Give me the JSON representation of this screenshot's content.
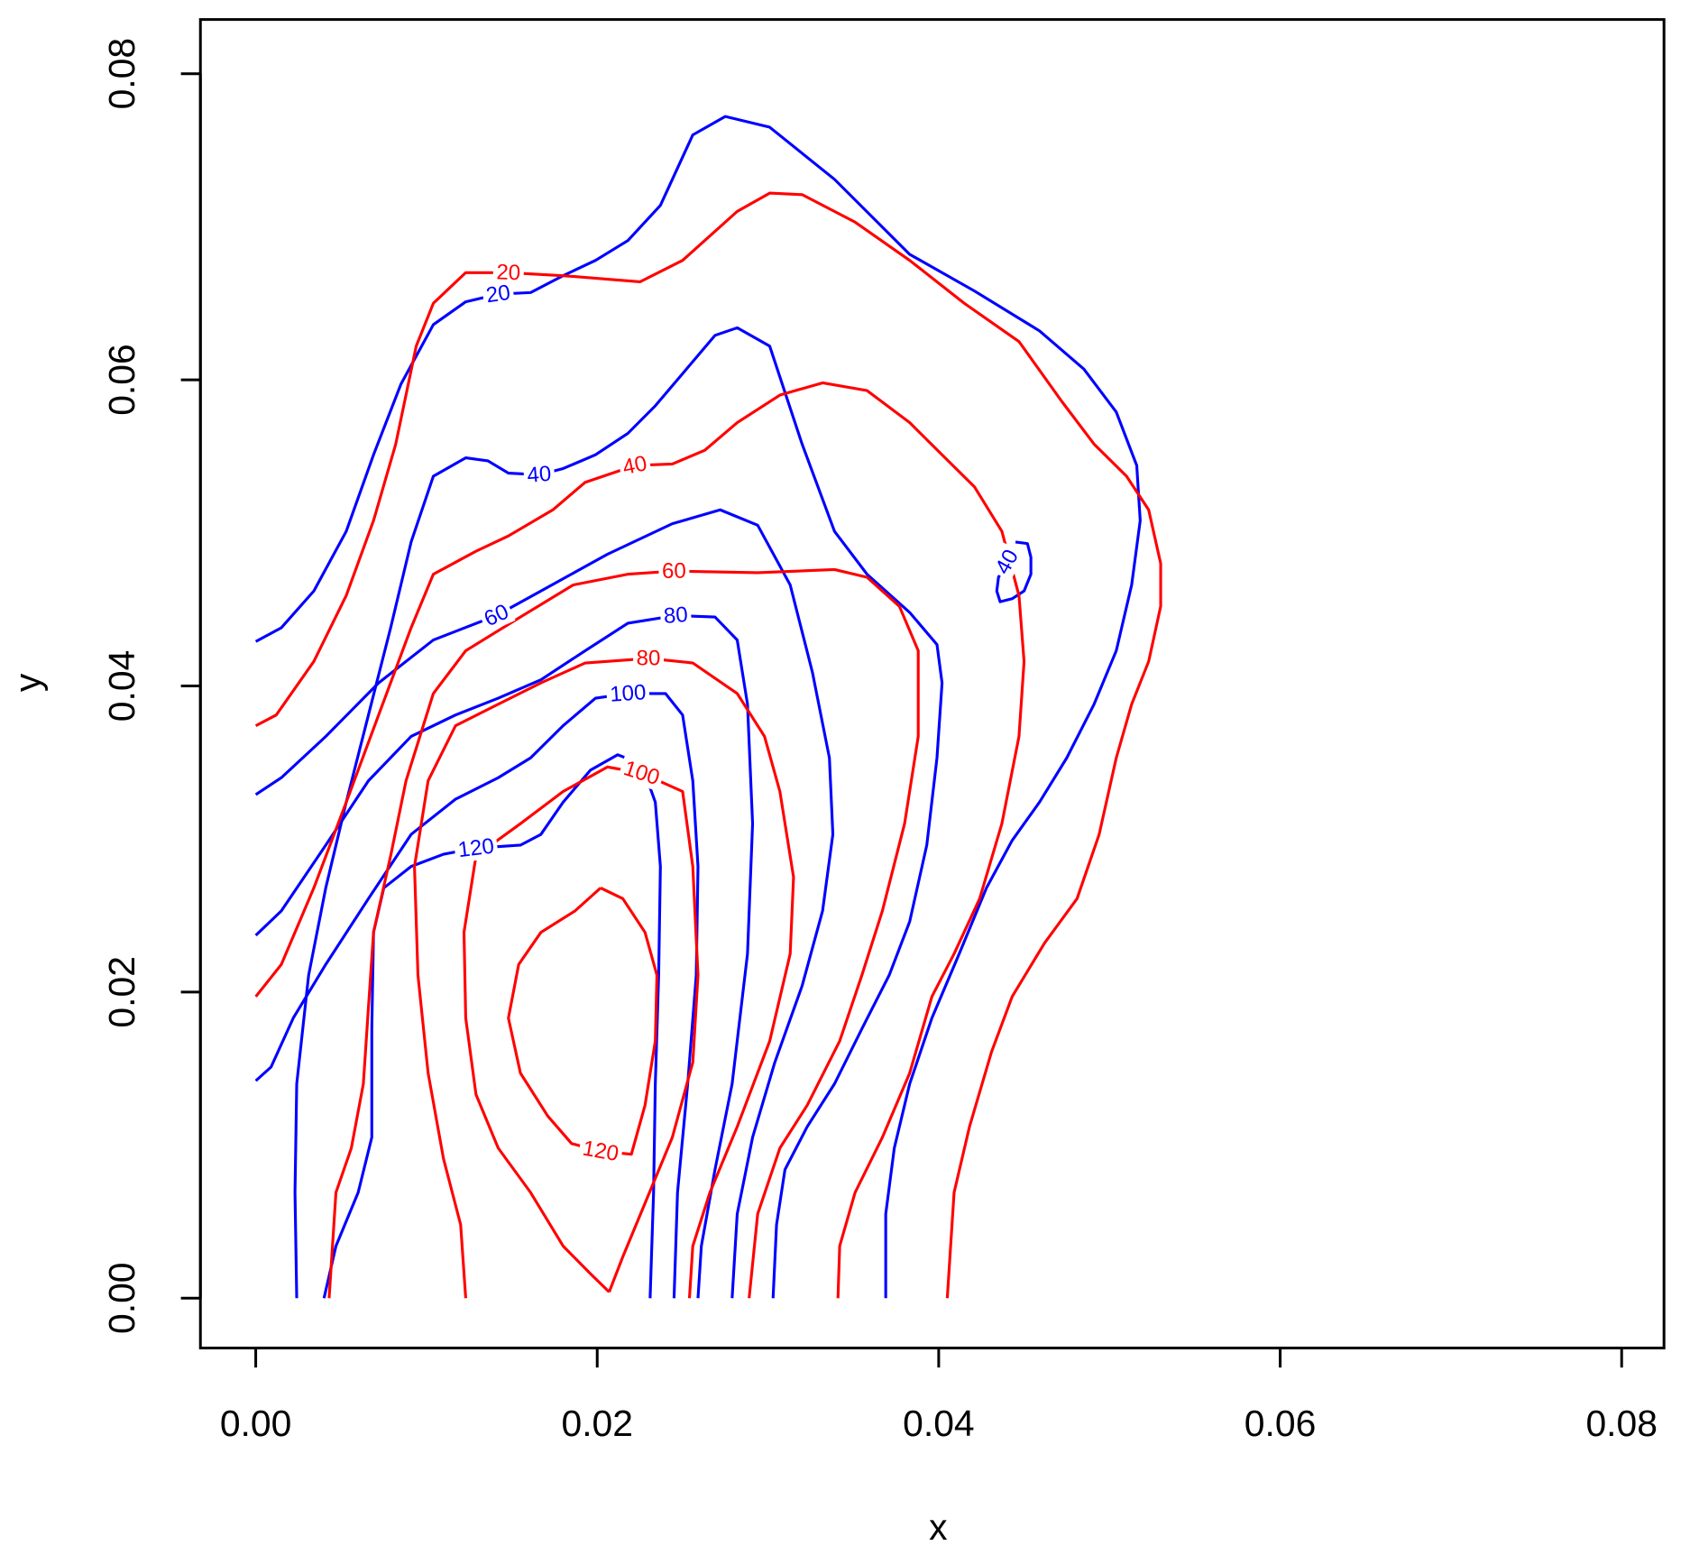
{
  "chart_data": {
    "type": "contour",
    "xlabel": "x",
    "ylabel": "y",
    "xlim": [
      -0.00324,
      0.08248
    ],
    "ylim": [
      -0.00326,
      0.08354
    ],
    "xticks": [
      {
        "value": 0,
        "label": "0.00"
      },
      {
        "value": 0.02,
        "label": "0.02"
      },
      {
        "value": 0.04,
        "label": "0.04"
      },
      {
        "value": 0.06,
        "label": "0.06"
      },
      {
        "value": 0.08,
        "label": "0.08"
      }
    ],
    "yticks": [
      {
        "value": 0,
        "label": "0.00"
      },
      {
        "value": 0.02,
        "label": "0.02"
      },
      {
        "value": 0.04,
        "label": "0.04"
      },
      {
        "value": 0.06,
        "label": "0.06"
      },
      {
        "value": 0.08,
        "label": "0.08"
      }
    ],
    "series": [
      {
        "color": "#0000ff",
        "contours": [
          {
            "level": 20,
            "x": [
              0,
              0.0015,
              0.0034,
              0.0053,
              0.0069,
              0.0085,
              0.0104,
              0.0123,
              0.0142,
              0.0161,
              0.018,
              0.0199,
              0.0218,
              0.0237,
              0.0256,
              0.0275,
              0.0301,
              0.0339,
              0.0383,
              0.0421,
              0.0459,
              0.0485,
              0.0504,
              0.0516,
              0.0518,
              0.0513,
              0.0504,
              0.0491,
              0.0475,
              0.0459,
              0.0443,
              0.0428,
              0.0412,
              0.0396,
              0.0383,
              0.0374,
              0.0369,
              0.0369
            ],
            "y": [
              0.0429,
              0.0438,
              0.0462,
              0.0501,
              0.0551,
              0.0597,
              0.0636,
              0.0651,
              0.0656,
              0.0657,
              0.0668,
              0.0678,
              0.0691,
              0.0714,
              0.076,
              0.0772,
              0.0765,
              0.0731,
              0.0682,
              0.0658,
              0.0632,
              0.0607,
              0.0579,
              0.0544,
              0.0508,
              0.0466,
              0.0423,
              0.0388,
              0.0353,
              0.0324,
              0.0299,
              0.0268,
              0.0225,
              0.0183,
              0.014,
              0.0098,
              0.0055,
              0
            ]
          },
          {
            "level": 40,
            "x": [
              0.0024,
              0.0023,
              0.0024,
              0.0031,
              0.0041,
              0.0053,
              0.0066,
              0.0079,
              0.0091,
              0.0104,
              0.0123,
              0.0136,
              0.0148,
              0.0166,
              0.018,
              0.0199,
              0.0218,
              0.0234,
              0.025,
              0.0269,
              0.0282,
              0.0301,
              0.032,
              0.0339,
              0.0358,
              0.0383,
              0.0399,
              0.0402,
              0.0399,
              0.0393,
              0.0383,
              0.0371,
              0.0355,
              0.0339,
              0.0323,
              0.031,
              0.0305,
              0.0303
            ],
            "y": [
              0,
              0.0069,
              0.014,
              0.0211,
              0.0268,
              0.0324,
              0.0381,
              0.0438,
              0.0494,
              0.0537,
              0.0549,
              0.0547,
              0.0539,
              0.0538,
              0.0542,
              0.0551,
              0.0565,
              0.0583,
              0.0604,
              0.0629,
              0.0634,
              0.0622,
              0.0558,
              0.0501,
              0.0473,
              0.0448,
              0.0427,
              0.0402,
              0.0353,
              0.0296,
              0.0246,
              0.0211,
              0.0176,
              0.014,
              0.0112,
              0.0084,
              0.0048,
              0
            ]
          },
          {
            "level": 40,
            "x": [
              0.0445,
              0.0452,
              0.0454,
              0.0454,
              0.045,
              0.0443,
              0.0436,
              0.0434,
              0.0435,
              0.044
            ],
            "y": [
              0.0494,
              0.0493,
              0.0484,
              0.0473,
              0.0462,
              0.0457,
              0.0455,
              0.0462,
              0.0471,
              0.0481
            ]
          },
          {
            "level": 60,
            "x": [
              0,
              0.0015,
              0.0041,
              0.0072,
              0.0104,
              0.0141,
              0.0167,
              0.0206,
              0.0244,
              0.0272,
              0.0294,
              0.0313,
              0.0326,
              0.0336,
              0.0338,
              0.0332,
              0.032,
              0.0304,
              0.0291,
              0.0282,
              0.0279
            ],
            "y": [
              0.0329,
              0.034,
              0.0367,
              0.0402,
              0.043,
              0.0446,
              0.0462,
              0.0486,
              0.0506,
              0.0515,
              0.0505,
              0.0466,
              0.0409,
              0.0353,
              0.0303,
              0.0253,
              0.0204,
              0.0154,
              0.0105,
              0.0055,
              0
            ]
          },
          {
            "level": 80,
            "x": [
              0,
              0.0015,
              0.0041,
              0.0066,
              0.0091,
              0.0117,
              0.0142,
              0.0167,
              0.0193,
              0.0218,
              0.0246,
              0.0269,
              0.0282,
              0.0288,
              0.0291,
              0.0288,
              0.0279,
              0.0269,
              0.0261,
              0.0259
            ],
            "y": [
              0.0237,
              0.0253,
              0.0296,
              0.0338,
              0.0367,
              0.0381,
              0.0392,
              0.0404,
              0.0423,
              0.0441,
              0.0446,
              0.0445,
              0.043,
              0.0388,
              0.031,
              0.0225,
              0.014,
              0.0084,
              0.0034,
              0
            ]
          },
          {
            "level": 100,
            "x": [
              0,
              0.0009,
              0.0022,
              0.0041,
              0.0066,
              0.0091,
              0.0117,
              0.0142,
              0.0161,
              0.018,
              0.0199,
              0.0218,
              0.024,
              0.025,
              0.0256,
              0.0259,
              0.0258,
              0.0253,
              0.0247,
              0.0245
            ],
            "y": [
              0.0142,
              0.0151,
              0.0183,
              0.0218,
              0.0261,
              0.0303,
              0.0326,
              0.034,
              0.0353,
              0.0374,
              0.0392,
              0.0395,
              0.0395,
              0.0381,
              0.0338,
              0.0282,
              0.0211,
              0.014,
              0.0069,
              0
            ]
          },
          {
            "level": 120,
            "x": [
              0.004,
              0.0047,
              0.006,
              0.0068,
              0.0068,
              0.0069,
              0.0075,
              0.0091,
              0.011,
              0.0129,
              0.0155,
              0.0167,
              0.018,
              0.0196,
              0.0212,
              0.0226,
              0.0234,
              0.0237,
              0.0236,
              0.0234,
              0.0233,
              0.0231
            ],
            "y": [
              0,
              0.0034,
              0.0069,
              0.0105,
              0.0176,
              0.0239,
              0.0268,
              0.0282,
              0.029,
              0.0294,
              0.0296,
              0.0303,
              0.0324,
              0.0345,
              0.0355,
              0.0349,
              0.0324,
              0.0282,
              0.0211,
              0.014,
              0.0069,
              0
            ]
          }
        ]
      },
      {
        "color": "#ff0000",
        "contours": [
          {
            "level": 20,
            "x": [
              0,
              0.0012,
              0.0034,
              0.0053,
              0.0069,
              0.0082,
              0.0094,
              0.0104,
              0.0123,
              0.0148,
              0.018,
              0.0225,
              0.025,
              0.0282,
              0.0301,
              0.032,
              0.0351,
              0.0383,
              0.0415,
              0.0447,
              0.0472,
              0.0491,
              0.051,
              0.0523,
              0.053,
              0.053,
              0.0523,
              0.0513,
              0.0504,
              0.0494,
              0.0481,
              0.0462,
              0.0443,
              0.0431,
              0.0418,
              0.0409,
              0.0405
            ],
            "y": [
              0.0374,
              0.0381,
              0.0416,
              0.0459,
              0.0508,
              0.0558,
              0.0622,
              0.065,
              0.067,
              0.067,
              0.0668,
              0.0664,
              0.0678,
              0.071,
              0.0722,
              0.0721,
              0.0703,
              0.0678,
              0.065,
              0.0625,
              0.0586,
              0.0558,
              0.0537,
              0.0515,
              0.048,
              0.0452,
              0.0416,
              0.0388,
              0.0353,
              0.0303,
              0.0261,
              0.0232,
              0.0197,
              0.0161,
              0.0112,
              0.0069,
              0
            ]
          },
          {
            "level": 40,
            "x": [
              0,
              0.0015,
              0.0034,
              0.0053,
              0.0072,
              0.0091,
              0.0104,
              0.0129,
              0.0148,
              0.0174,
              0.0193,
              0.0222,
              0.0244,
              0.0263,
              0.0282,
              0.0307,
              0.0332,
              0.0358,
              0.0383,
              0.0402,
              0.0421,
              0.0437,
              0.0447,
              0.045,
              0.0447,
              0.0437,
              0.0424,
              0.0409,
              0.0396,
              0.0383,
              0.0367,
              0.0351,
              0.0342,
              0.0341
            ],
            "y": [
              0.0197,
              0.0218,
              0.0268,
              0.0324,
              0.0381,
              0.0438,
              0.0473,
              0.0488,
              0.0498,
              0.0515,
              0.0533,
              0.0544,
              0.0545,
              0.0554,
              0.0572,
              0.059,
              0.0598,
              0.0593,
              0.0572,
              0.0551,
              0.053,
              0.0501,
              0.0459,
              0.0416,
              0.0367,
              0.031,
              0.0261,
              0.0225,
              0.0197,
              0.0147,
              0.0105,
              0.0069,
              0.0034,
              0
            ]
          },
          {
            "level": 60,
            "x": [
              0.0043,
              0.0047,
              0.0056,
              0.0063,
              0.0066,
              0.0069,
              0.0079,
              0.0088,
              0.0104,
              0.0123,
              0.0155,
              0.0186,
              0.0218,
              0.0245,
              0.0294,
              0.0339,
              0.0358,
              0.0377,
              0.0388,
              0.0388,
              0.038,
              0.0367,
              0.0355,
              0.0342,
              0.0323,
              0.0307,
              0.0294,
              0.0289
            ],
            "y": [
              0,
              0.0069,
              0.0098,
              0.014,
              0.019,
              0.0239,
              0.0289,
              0.0338,
              0.0395,
              0.0423,
              0.0445,
              0.0466,
              0.0473,
              0.0475,
              0.0474,
              0.0476,
              0.0471,
              0.0452,
              0.0423,
              0.0367,
              0.031,
              0.0253,
              0.0211,
              0.0168,
              0.0126,
              0.0098,
              0.0055,
              0
            ]
          },
          {
            "level": 80,
            "x": [
              0.0123,
              0.012,
              0.011,
              0.0101,
              0.0095,
              0.0093,
              0.0101,
              0.0117,
              0.0142,
              0.0167,
              0.0193,
              0.023,
              0.0256,
              0.0282,
              0.0298,
              0.0307,
              0.0315,
              0.0313,
              0.0301,
              0.0282,
              0.0266,
              0.0256,
              0.0254
            ],
            "y": [
              0,
              0.0048,
              0.0091,
              0.0147,
              0.0211,
              0.0282,
              0.0338,
              0.0374,
              0.0388,
              0.0402,
              0.0415,
              0.0418,
              0.0415,
              0.0395,
              0.0367,
              0.0331,
              0.0275,
              0.0225,
              0.0168,
              0.0112,
              0.0069,
              0.0034,
              0
            ]
          },
          {
            "level": 100,
            "x": [
              0.0207,
              0.0196,
              0.018,
              0.0161,
              0.0142,
              0.0129,
              0.0123,
              0.0122,
              0.0129,
              0.0155,
              0.018,
              0.0206,
              0.0226,
              0.025,
              0.0256,
              0.0259,
              0.0256,
              0.0244,
              0.0228,
              0.0215,
              0.0207
            ],
            "y": [
              0.0004,
              0.0016,
              0.0034,
              0.0069,
              0.0098,
              0.0133,
              0.0183,
              0.0239,
              0.0289,
              0.031,
              0.0331,
              0.0347,
              0.0343,
              0.0331,
              0.0282,
              0.0211,
              0.0154,
              0.0105,
              0.0062,
              0.0027,
              0.0004
            ]
          },
          {
            "level": 120,
            "x": [
              0.0202,
              0.0187,
              0.0167,
              0.0154,
              0.0148,
              0.0155,
              0.0171,
              0.0185,
              0.0202,
              0.022,
              0.0228,
              0.0234,
              0.0235,
              0.0228,
              0.0215,
              0.0202
            ],
            "y": [
              0.0268,
              0.0253,
              0.0239,
              0.0218,
              0.0183,
              0.0147,
              0.0119,
              0.0101,
              0.0096,
              0.0094,
              0.0126,
              0.0168,
              0.0211,
              0.0239,
              0.0261,
              0.0268
            ]
          }
        ]
      }
    ]
  }
}
